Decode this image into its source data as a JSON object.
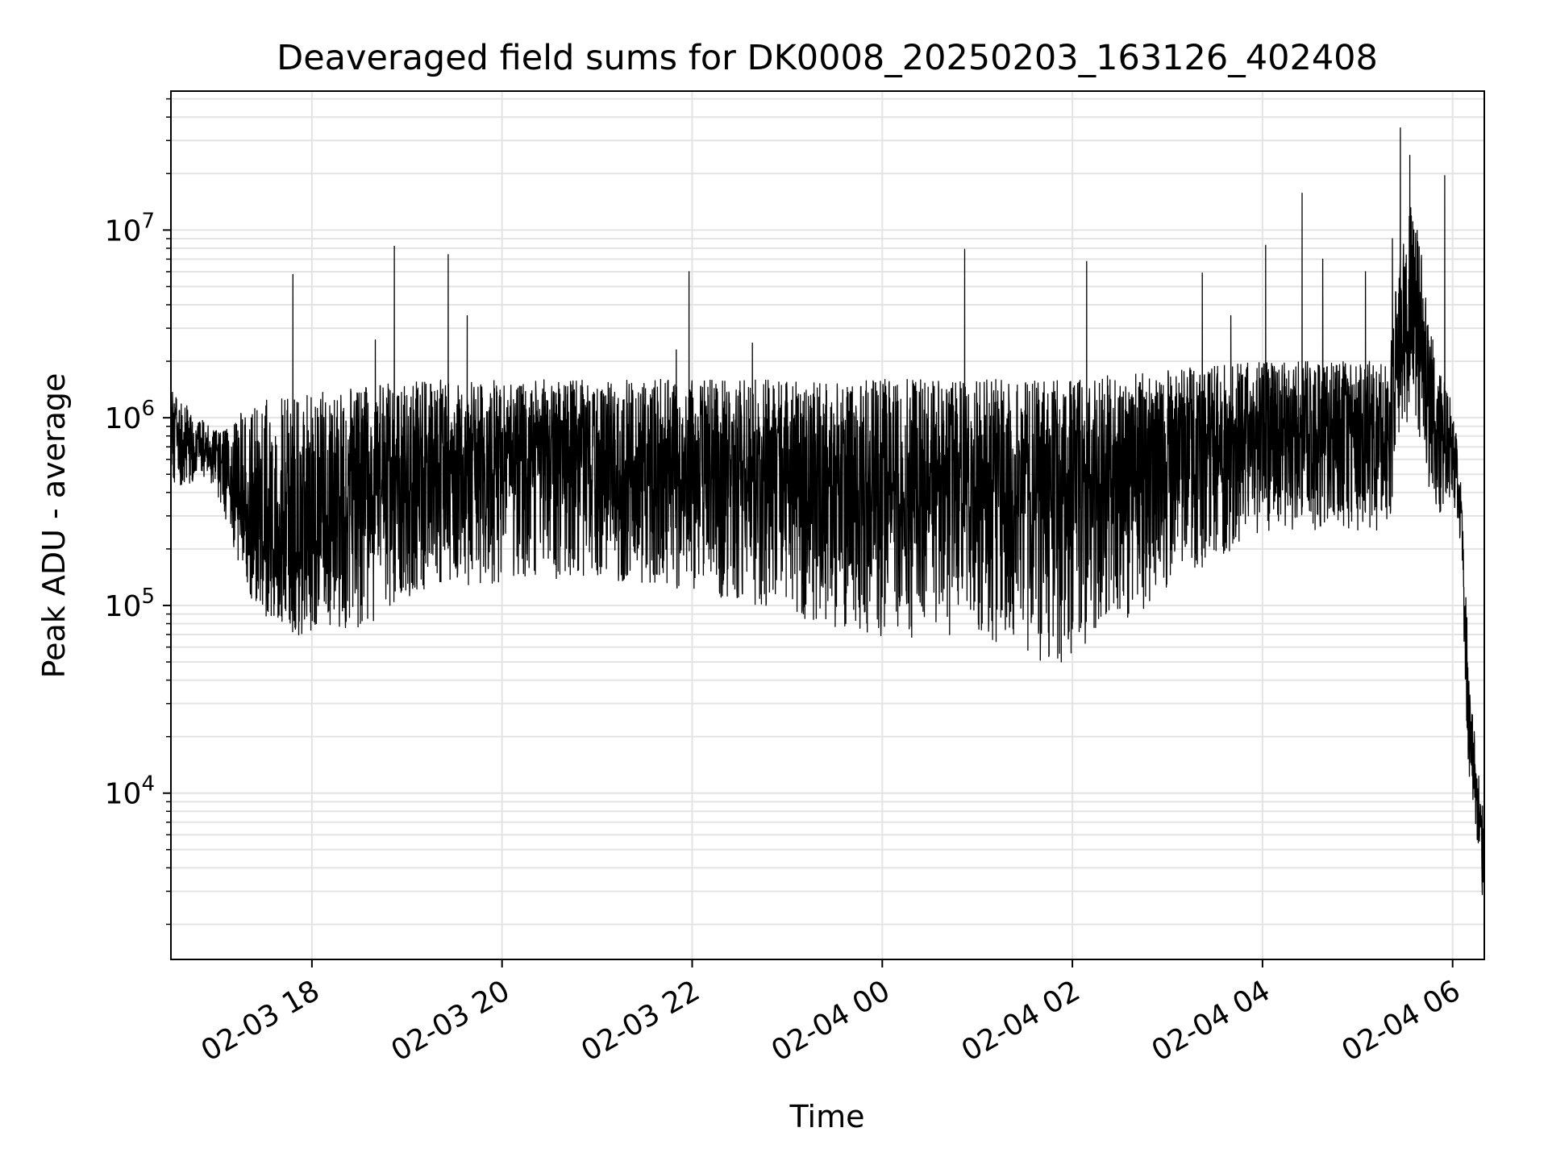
{
  "chart_data": {
    "type": "line",
    "title": "Deaveraged field sums for DK0008_20250203_163126_402408",
    "xlabel": "Time",
    "ylabel": "Peak ADU - average",
    "yscale": "log",
    "xlim": [
      "2025-02-03 16:31",
      "2025-02-04 06:20"
    ],
    "ylim": [
      1300,
      55000000
    ],
    "grid": true,
    "line_color": "#000000",
    "grid_color": "#e3e3e3",
    "x_ticks": [
      {
        "value": "2025-02-03 18:00",
        "label": "02-03 18"
      },
      {
        "value": "2025-02-03 20:00",
        "label": "02-03 20"
      },
      {
        "value": "2025-02-03 22:00",
        "label": "02-03 22"
      },
      {
        "value": "2025-02-04 00:00",
        "label": "02-04 00"
      },
      {
        "value": "2025-02-04 02:00",
        "label": "02-04 02"
      },
      {
        "value": "2025-02-04 04:00",
        "label": "02-04 04"
      },
      {
        "value": "2025-02-04 06:00",
        "label": "02-04 06"
      }
    ],
    "y_ticks": [
      {
        "value": 10000,
        "base": "10",
        "exp": "4"
      },
      {
        "value": 100000,
        "base": "10",
        "exp": "5"
      },
      {
        "value": 1000000,
        "base": "10",
        "exp": "6"
      },
      {
        "value": 10000000,
        "base": "10",
        "exp": "7"
      }
    ],
    "envelope": [
      {
        "t": "2025-02-03 16:31",
        "low": 420000,
        "high": 1400000,
        "typ": 650000
      },
      {
        "t": "2025-02-03 16:55",
        "low": 480000,
        "high": 900000,
        "typ": 650000
      },
      {
        "t": "2025-02-03 17:05",
        "low": 300000,
        "high": 850000,
        "typ": 500000
      },
      {
        "t": "2025-02-03 17:20",
        "low": 110000,
        "high": 1200000,
        "typ": 250000
      },
      {
        "t": "2025-02-03 17:45",
        "low": 65000,
        "high": 1300000,
        "typ": 180000
      },
      {
        "t": "2025-02-03 18:10",
        "low": 70000,
        "high": 1400000,
        "typ": 250000
      },
      {
        "t": "2025-02-03 18:40",
        "low": 80000,
        "high": 1500000,
        "typ": 400000
      },
      {
        "t": "2025-02-03 19:10",
        "low": 120000,
        "high": 1600000,
        "typ": 550000
      },
      {
        "t": "2025-02-03 20:00",
        "low": 130000,
        "high": 1600000,
        "typ": 550000
      },
      {
        "t": "2025-02-03 21:00",
        "low": 140000,
        "high": 1600000,
        "typ": 550000
      },
      {
        "t": "2025-02-03 22:00",
        "low": 120000,
        "high": 1600000,
        "typ": 500000
      },
      {
        "t": "2025-02-03 23:00",
        "low": 90000,
        "high": 1600000,
        "typ": 450000
      },
      {
        "t": "2025-02-04 00:00",
        "low": 65000,
        "high": 1600000,
        "typ": 420000
      },
      {
        "t": "2025-02-04 01:00",
        "low": 70000,
        "high": 1600000,
        "typ": 420000
      },
      {
        "t": "2025-02-04 01:55",
        "low": 45000,
        "high": 1600000,
        "typ": 400000
      },
      {
        "t": "2025-02-04 03:00",
        "low": 120000,
        "high": 1800000,
        "typ": 600000
      },
      {
        "t": "2025-02-04 04:00",
        "low": 250000,
        "high": 2000000,
        "typ": 800000
      },
      {
        "t": "2025-02-04 05:20",
        "low": 250000,
        "high": 2000000,
        "typ": 850000
      },
      {
        "t": "2025-02-04 05:25",
        "low": 700000,
        "high": 6000000,
        "typ": 2000000
      },
      {
        "t": "2025-02-04 05:35",
        "low": 900000,
        "high": 15000000,
        "typ": 2500000
      },
      {
        "t": "2025-02-04 05:50",
        "low": 300000,
        "high": 2000000,
        "typ": 900000
      },
      {
        "t": "2025-02-04 06:00",
        "low": 350000,
        "high": 1200000,
        "typ": 700000
      },
      {
        "t": "2025-02-04 06:05",
        "low": 200000,
        "high": 500000,
        "typ": 350000
      },
      {
        "t": "2025-02-04 06:10",
        "low": 12000,
        "high": 60000,
        "typ": 25000
      },
      {
        "t": "2025-02-04 06:15",
        "low": 6000,
        "high": 15000,
        "typ": 9000
      },
      {
        "t": "2025-02-04 06:20",
        "low": 2200,
        "high": 8000,
        "typ": 5000
      }
    ],
    "spikes": [
      {
        "t": "2025-02-03 17:48",
        "value": 5800000
      },
      {
        "t": "2025-02-03 18:40",
        "value": 2600000
      },
      {
        "t": "2025-02-03 18:52",
        "value": 8200000
      },
      {
        "t": "2025-02-03 19:26",
        "value": 7400000
      },
      {
        "t": "2025-02-03 19:38",
        "value": 3500000
      },
      {
        "t": "2025-02-03 21:50",
        "value": 2300000
      },
      {
        "t": "2025-02-03 21:58",
        "value": 6000000
      },
      {
        "t": "2025-02-03 22:38",
        "value": 2500000
      },
      {
        "t": "2025-02-04 00:52",
        "value": 7900000
      },
      {
        "t": "2025-02-04 02:09",
        "value": 6800000
      },
      {
        "t": "2025-02-04 03:22",
        "value": 5900000
      },
      {
        "t": "2025-02-04 03:40",
        "value": 3500000
      },
      {
        "t": "2025-02-04 04:02",
        "value": 8300000
      },
      {
        "t": "2025-02-04 04:25",
        "value": 15700000
      },
      {
        "t": "2025-02-04 04:38",
        "value": 7000000
      },
      {
        "t": "2025-02-04 05:05",
        "value": 6000000
      },
      {
        "t": "2025-02-04 05:22",
        "value": 9000000
      },
      {
        "t": "2025-02-04 05:27",
        "value": 35000000
      },
      {
        "t": "2025-02-04 05:33",
        "value": 25000000
      },
      {
        "t": "2025-02-04 05:55",
        "value": 19500000
      }
    ]
  }
}
